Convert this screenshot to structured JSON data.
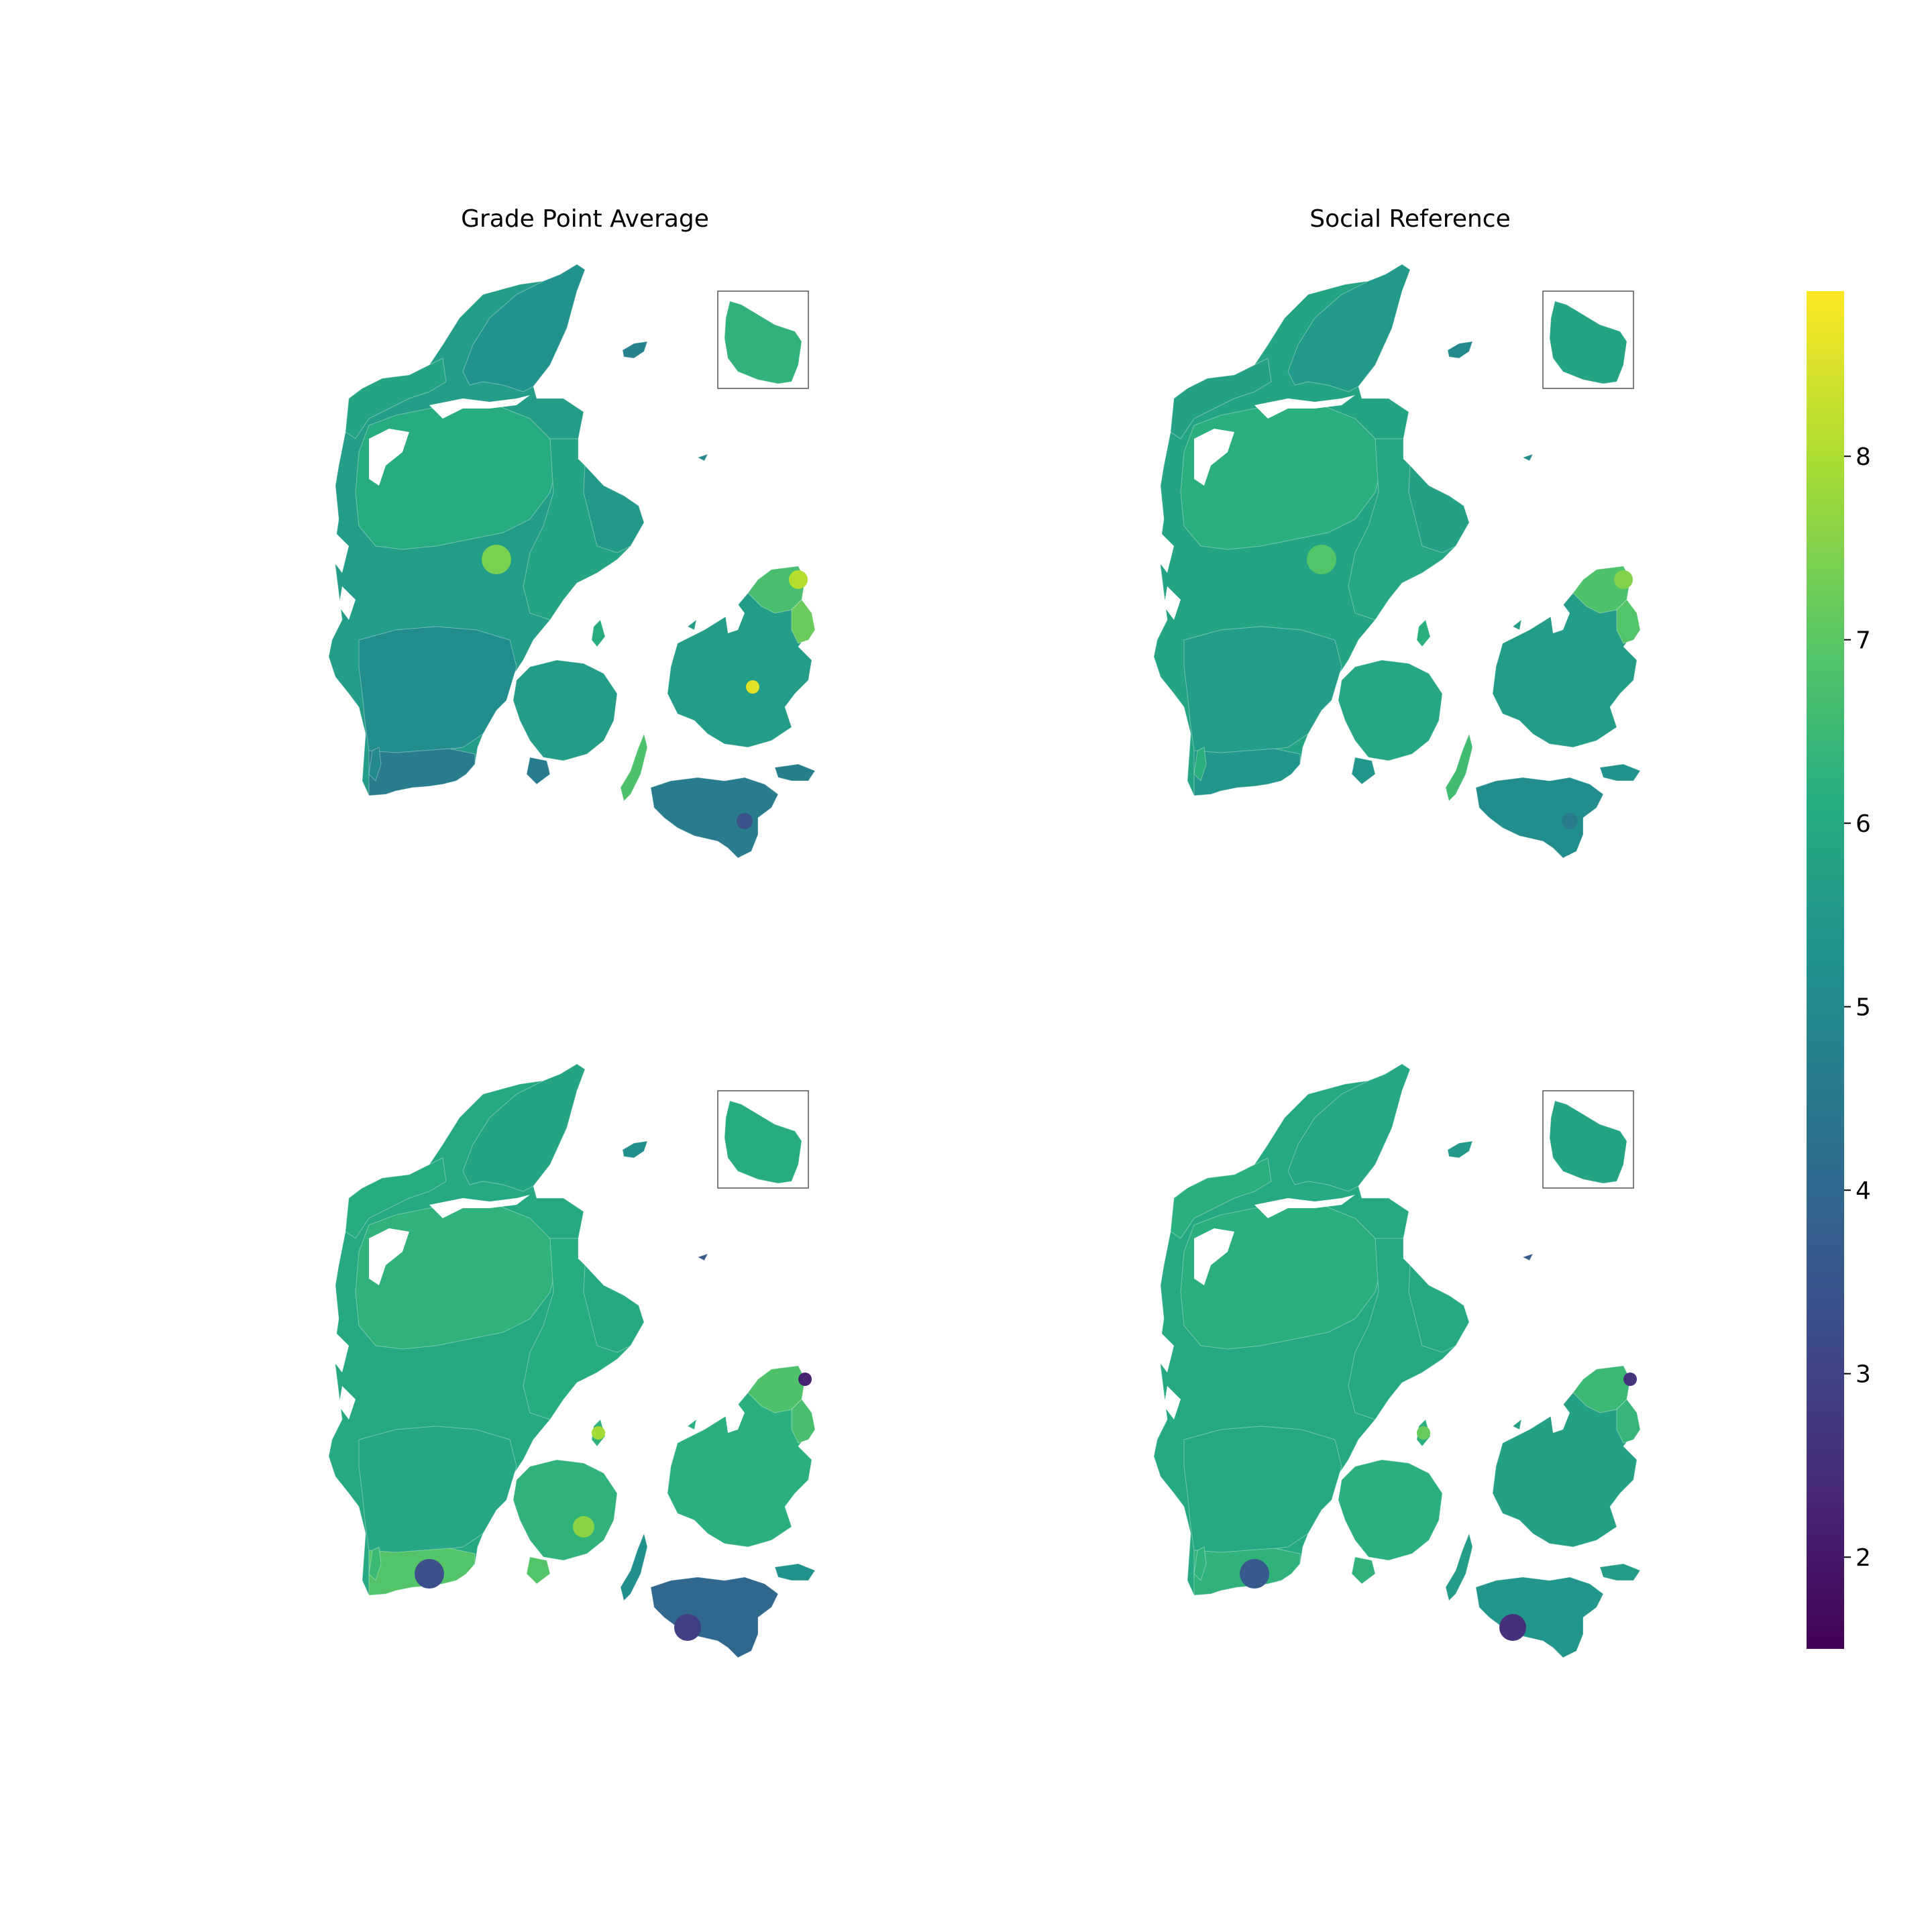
{
  "panels": [
    {
      "title": "Grade Point Average",
      "regions": {
        "north_jutland": 5.7,
        "vendsyssel": 5.3,
        "thy": 5.8,
        "central_jutland": 6.1,
        "west_jutland": 5.6,
        "east_jutland": 5.8,
        "south_jutland": 5.1,
        "south_coast": 4.6,
        "funen": 5.6,
        "langeland": 6.8,
        "zealand": 5.6,
        "zealand_north": 6.7,
        "copenhagen": 7.2,
        "lolland_falster": 4.6,
        "bornholm": 6.3,
        "anholt": 4.9,
        "laeso": 4.8,
        "fanoe": 5.0,
        "djursland": 5.5,
        "moen": 4.7
      },
      "highlights": [
        {
          "place": "north_zealand",
          "value": 8.1
        },
        {
          "place": "central_zealand",
          "value": 8.6
        },
        {
          "place": "mid_jutland_east",
          "value": 7.4
        },
        {
          "place": "lolland_east",
          "value": 3.4
        }
      ]
    },
    {
      "title": "Social Reference",
      "regions": {
        "north_jutland": 5.8,
        "vendsyssel": 5.5,
        "thy": 5.7,
        "central_jutland": 6.2,
        "west_jutland": 5.8,
        "east_jutland": 5.9,
        "south_jutland": 5.6,
        "south_coast": 5.4,
        "funen": 5.9,
        "langeland": 6.6,
        "zealand": 5.6,
        "zealand_north": 6.8,
        "copenhagen": 6.9,
        "lolland_falster": 5.1,
        "bornholm": 5.8,
        "anholt": 5.0,
        "laeso": 5.0,
        "fanoe": 6.2,
        "djursland": 5.7,
        "moen": 5.3
      },
      "highlights": [
        {
          "place": "north_zealand",
          "value": 7.5
        },
        {
          "place": "mid_jutland_east",
          "value": 6.9
        },
        {
          "place": "lolland_east",
          "value": 4.6
        }
      ]
    },
    {
      "title": "",
      "regions": {
        "north_jutland": 6.0,
        "vendsyssel": 5.8,
        "thy": 6.1,
        "central_jutland": 6.3,
        "west_jutland": 6.0,
        "east_jutland": 6.1,
        "south_jutland": 5.9,
        "south_coast": 6.9,
        "funen": 6.3,
        "langeland": 5.2,
        "zealand": 6.2,
        "zealand_north": 6.8,
        "copenhagen": 6.7,
        "lolland_falster": 4.0,
        "bornholm": 6.1,
        "anholt": 3.6,
        "laeso": 5.2,
        "fanoe": 6.5,
        "djursland": 6.0,
        "moen": 5.3
      },
      "highlights": [
        {
          "place": "lolland_west",
          "value": 2.9
        },
        {
          "place": "south_jutland_west",
          "value": 3.3
        },
        {
          "place": "samsoe",
          "value": 7.9
        },
        {
          "place": "zealand_northwest",
          "value": 2.2
        },
        {
          "place": "funen_south",
          "value": 7.6
        }
      ]
    },
    {
      "title": "",
      "regions": {
        "north_jutland": 6.0,
        "vendsyssel": 5.9,
        "thy": 6.2,
        "central_jutland": 6.2,
        "west_jutland": 6.0,
        "east_jutland": 6.0,
        "south_jutland": 6.0,
        "south_coast": 6.3,
        "funen": 6.2,
        "langeland": 5.6,
        "zealand": 5.7,
        "zealand_north": 6.5,
        "copenhagen": 6.4,
        "lolland_falster": 5.4,
        "bornholm": 5.8,
        "anholt": 3.6,
        "laeso": 5.5,
        "fanoe": 6.3,
        "djursland": 6.0,
        "moen": 5.6
      },
      "highlights": [
        {
          "place": "lolland_west",
          "value": 2.5
        },
        {
          "place": "south_jutland_west",
          "value": 3.6
        },
        {
          "place": "samsoe",
          "value": 7.2
        },
        {
          "place": "zealand_northwest",
          "value": 2.6
        }
      ]
    }
  ],
  "colorbar": {
    "colormap": "viridis",
    "vmin": 1.5,
    "vmax": 8.9,
    "ticks": [
      "2",
      "3",
      "4",
      "5",
      "6",
      "7",
      "8"
    ]
  }
}
